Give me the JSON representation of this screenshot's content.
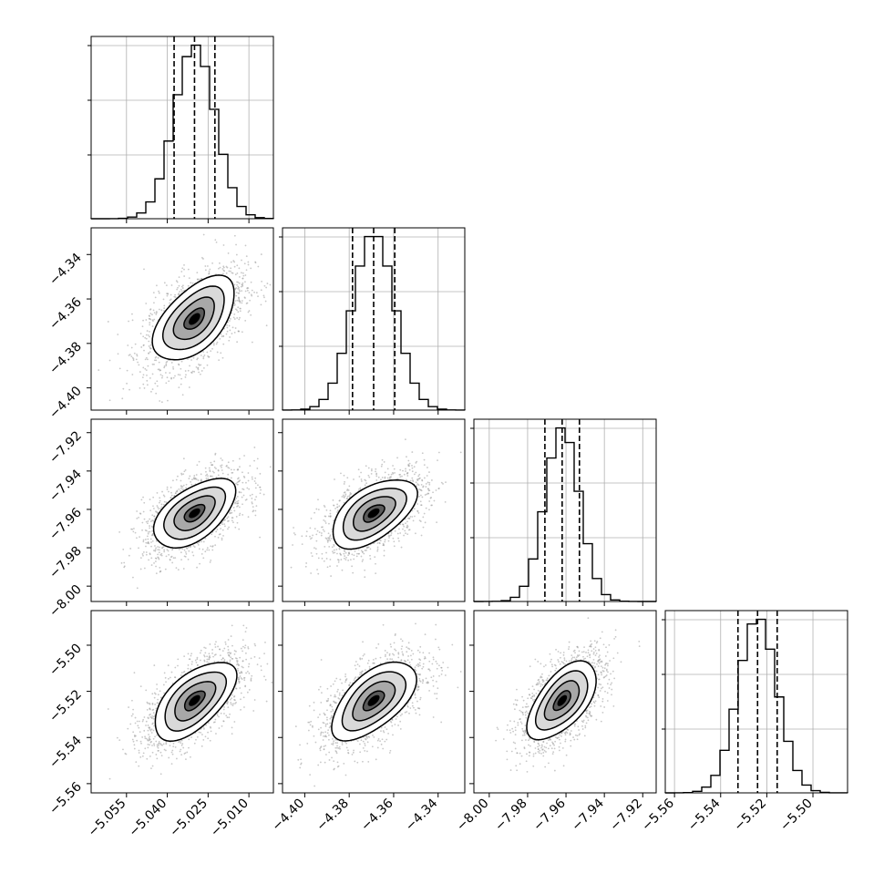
{
  "chart_data": {
    "type": "corner",
    "grid": true,
    "parameters": [
      {
        "range": [
          -5.068,
          -5.001
        ],
        "ticks": [
          -5.055,
          -5.04,
          -5.025,
          -5.01
        ],
        "tick_labels": [
          "−5.055",
          "−5.040",
          "−5.025",
          "−5.010"
        ],
        "mean": -5.03,
        "sd": 0.0075,
        "quantiles": [
          -5.0375,
          -5.03,
          -5.0225
        ]
      },
      {
        "range": [
          -4.41,
          -4.328
        ],
        "ticks": [
          -4.4,
          -4.38,
          -4.36,
          -4.34
        ],
        "tick_labels": [
          "−4.40",
          "−4.38",
          "−4.36",
          "−4.34"
        ],
        "mean": -4.369,
        "sd": 0.0095,
        "quantiles": [
          -4.3785,
          -4.369,
          -4.3595
        ]
      },
      {
        "range": [
          -8.008,
          -7.913
        ],
        "ticks": [
          -8.0,
          -7.98,
          -7.96,
          -7.94,
          -7.92
        ],
        "tick_labels": [
          "−8.00",
          "−7.98",
          "−7.96",
          "−7.94",
          "−7.92"
        ],
        "mean": -7.962,
        "sd": 0.009,
        "quantiles": [
          -7.971,
          -7.962,
          -7.953
        ]
      },
      {
        "range": [
          -5.564,
          -5.485
        ],
        "ticks": [
          -5.56,
          -5.54,
          -5.52,
          -5.5
        ],
        "tick_labels": [
          "−5.56",
          "−5.54",
          "−5.52",
          "−5.50"
        ],
        "mean": -5.524,
        "sd": 0.0085,
        "quantiles": [
          -5.5325,
          -5.524,
          -5.5155
        ]
      }
    ],
    "correlations": [
      [
        1,
        0.55,
        0.55,
        0.6
      ],
      [
        0.55,
        1,
        0.55,
        0.6
      ],
      [
        0.55,
        0.55,
        1,
        0.6
      ],
      [
        0.6,
        0.6,
        0.6,
        1
      ]
    ],
    "histogram_bins": 20,
    "quantile_line_style": "dashed",
    "contour_levels": [
      0.5,
      1.0,
      1.5,
      2.0
    ]
  }
}
